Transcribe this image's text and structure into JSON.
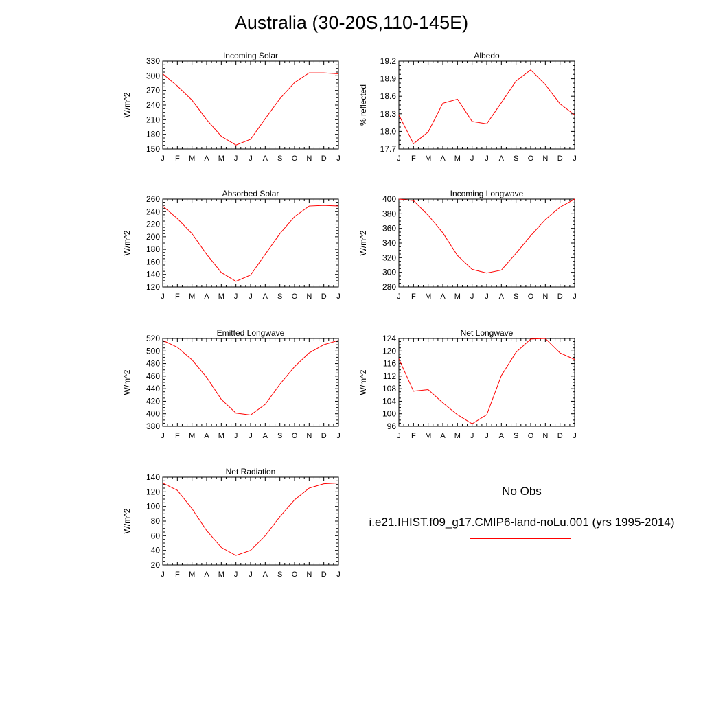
{
  "title": "Australia (30-20S,110-145E)",
  "months": [
    "J",
    "F",
    "M",
    "A",
    "M",
    "J",
    "J",
    "A",
    "S",
    "O",
    "N",
    "D",
    "J"
  ],
  "legend": {
    "entries": [
      {
        "label": "No Obs",
        "color": "#0000ff",
        "style": "dashed"
      },
      {
        "label": "i.e21.IHIST.f09_g17.CMIP6-land-noLu.001 (yrs 1995-2014)",
        "color": "#ff0000",
        "style": "solid"
      }
    ]
  },
  "chart_data": [
    {
      "type": "line",
      "title": "Incoming Solar",
      "ylabel": "W/m^2",
      "ylim": [
        150,
        330
      ],
      "yticks": [
        150,
        180,
        210,
        240,
        270,
        300,
        330
      ],
      "yticklabels": [
        "150",
        "180",
        "210",
        "240",
        "270",
        "300",
        "330"
      ],
      "series": [
        {
          "values": [
            304,
            279,
            250,
            210,
            176,
            158,
            170,
            212,
            253,
            286,
            306,
            306,
            304
          ],
          "color": "#ff0000"
        }
      ]
    },
    {
      "type": "line",
      "title": "Albedo",
      "ylabel": "% reflected",
      "ylim": [
        17.7,
        19.2
      ],
      "yticks": [
        17.7,
        18.0,
        18.3,
        18.6,
        18.9,
        19.2
      ],
      "yticklabels": [
        "17.7",
        "18.0",
        "18.3",
        "18.6",
        "18.9",
        "19.2"
      ],
      "series": [
        {
          "values": [
            18.28,
            17.79,
            17.99,
            18.48,
            18.55,
            18.17,
            18.13,
            18.49,
            18.86,
            19.05,
            18.8,
            18.47,
            18.28
          ],
          "color": "#ff0000"
        }
      ]
    },
    {
      "type": "line",
      "title": "Absorbed Solar",
      "ylabel": "W/m^2",
      "ylim": [
        120,
        260
      ],
      "yticks": [
        120,
        140,
        160,
        180,
        200,
        220,
        240,
        260
      ],
      "yticklabels": [
        "120",
        "140",
        "160",
        "180",
        "200",
        "220",
        "240",
        "260"
      ],
      "series": [
        {
          "values": [
            249,
            229,
            205,
            172,
            143,
            129,
            139,
            172,
            205,
            232,
            249,
            250,
            249
          ],
          "color": "#ff0000"
        }
      ]
    },
    {
      "type": "line",
      "title": "Incoming Longwave",
      "ylabel": "W/m^2",
      "ylim": [
        280,
        400
      ],
      "yticks": [
        280,
        300,
        320,
        340,
        360,
        380,
        400
      ],
      "yticklabels": [
        "280",
        "300",
        "320",
        "340",
        "360",
        "380",
        "400"
      ],
      "series": [
        {
          "values": [
            400,
            398,
            378,
            354,
            323,
            304,
            299,
            303,
            326,
            350,
            372,
            389,
            400
          ],
          "color": "#ff0000"
        }
      ]
    },
    {
      "type": "line",
      "title": "Emitted Longwave",
      "ylabel": "W/m^2",
      "ylim": [
        380,
        520
      ],
      "yticks": [
        380,
        400,
        420,
        440,
        460,
        480,
        500,
        520
      ],
      "yticklabels": [
        "380",
        "400",
        "420",
        "440",
        "460",
        "480",
        "500",
        "520"
      ],
      "series": [
        {
          "values": [
            517,
            506,
            486,
            458,
            423,
            401,
            398,
            415,
            447,
            475,
            497,
            510,
            517
          ],
          "color": "#ff0000"
        }
      ]
    },
    {
      "type": "line",
      "title": "Net Longwave",
      "ylabel": "W/m^2",
      "ylim": [
        96,
        124
      ],
      "yticks": [
        96,
        100,
        104,
        108,
        112,
        116,
        120,
        124
      ],
      "yticklabels": [
        "96",
        "100",
        "104",
        "108",
        "112",
        "116",
        "120",
        "124"
      ],
      "series": [
        {
          "values": [
            117.5,
            107.2,
            107.7,
            103.5,
            99.7,
            96.8,
            99.7,
            112.2,
            119.6,
            123.8,
            124.0,
            119.4,
            117.3
          ],
          "color": "#ff0000"
        }
      ]
    },
    {
      "type": "line",
      "title": "Net Radiation",
      "ylabel": "W/m^2",
      "ylim": [
        20,
        140
      ],
      "yticks": [
        20,
        40,
        60,
        80,
        100,
        120,
        140
      ],
      "yticklabels": [
        "20",
        "40",
        "60",
        "80",
        "100",
        "120",
        "140"
      ],
      "series": [
        {
          "values": [
            132,
            122,
            97,
            67,
            44,
            33,
            40,
            60,
            86,
            109,
            125,
            131,
            132
          ],
          "color": "#ff0000"
        }
      ]
    }
  ]
}
